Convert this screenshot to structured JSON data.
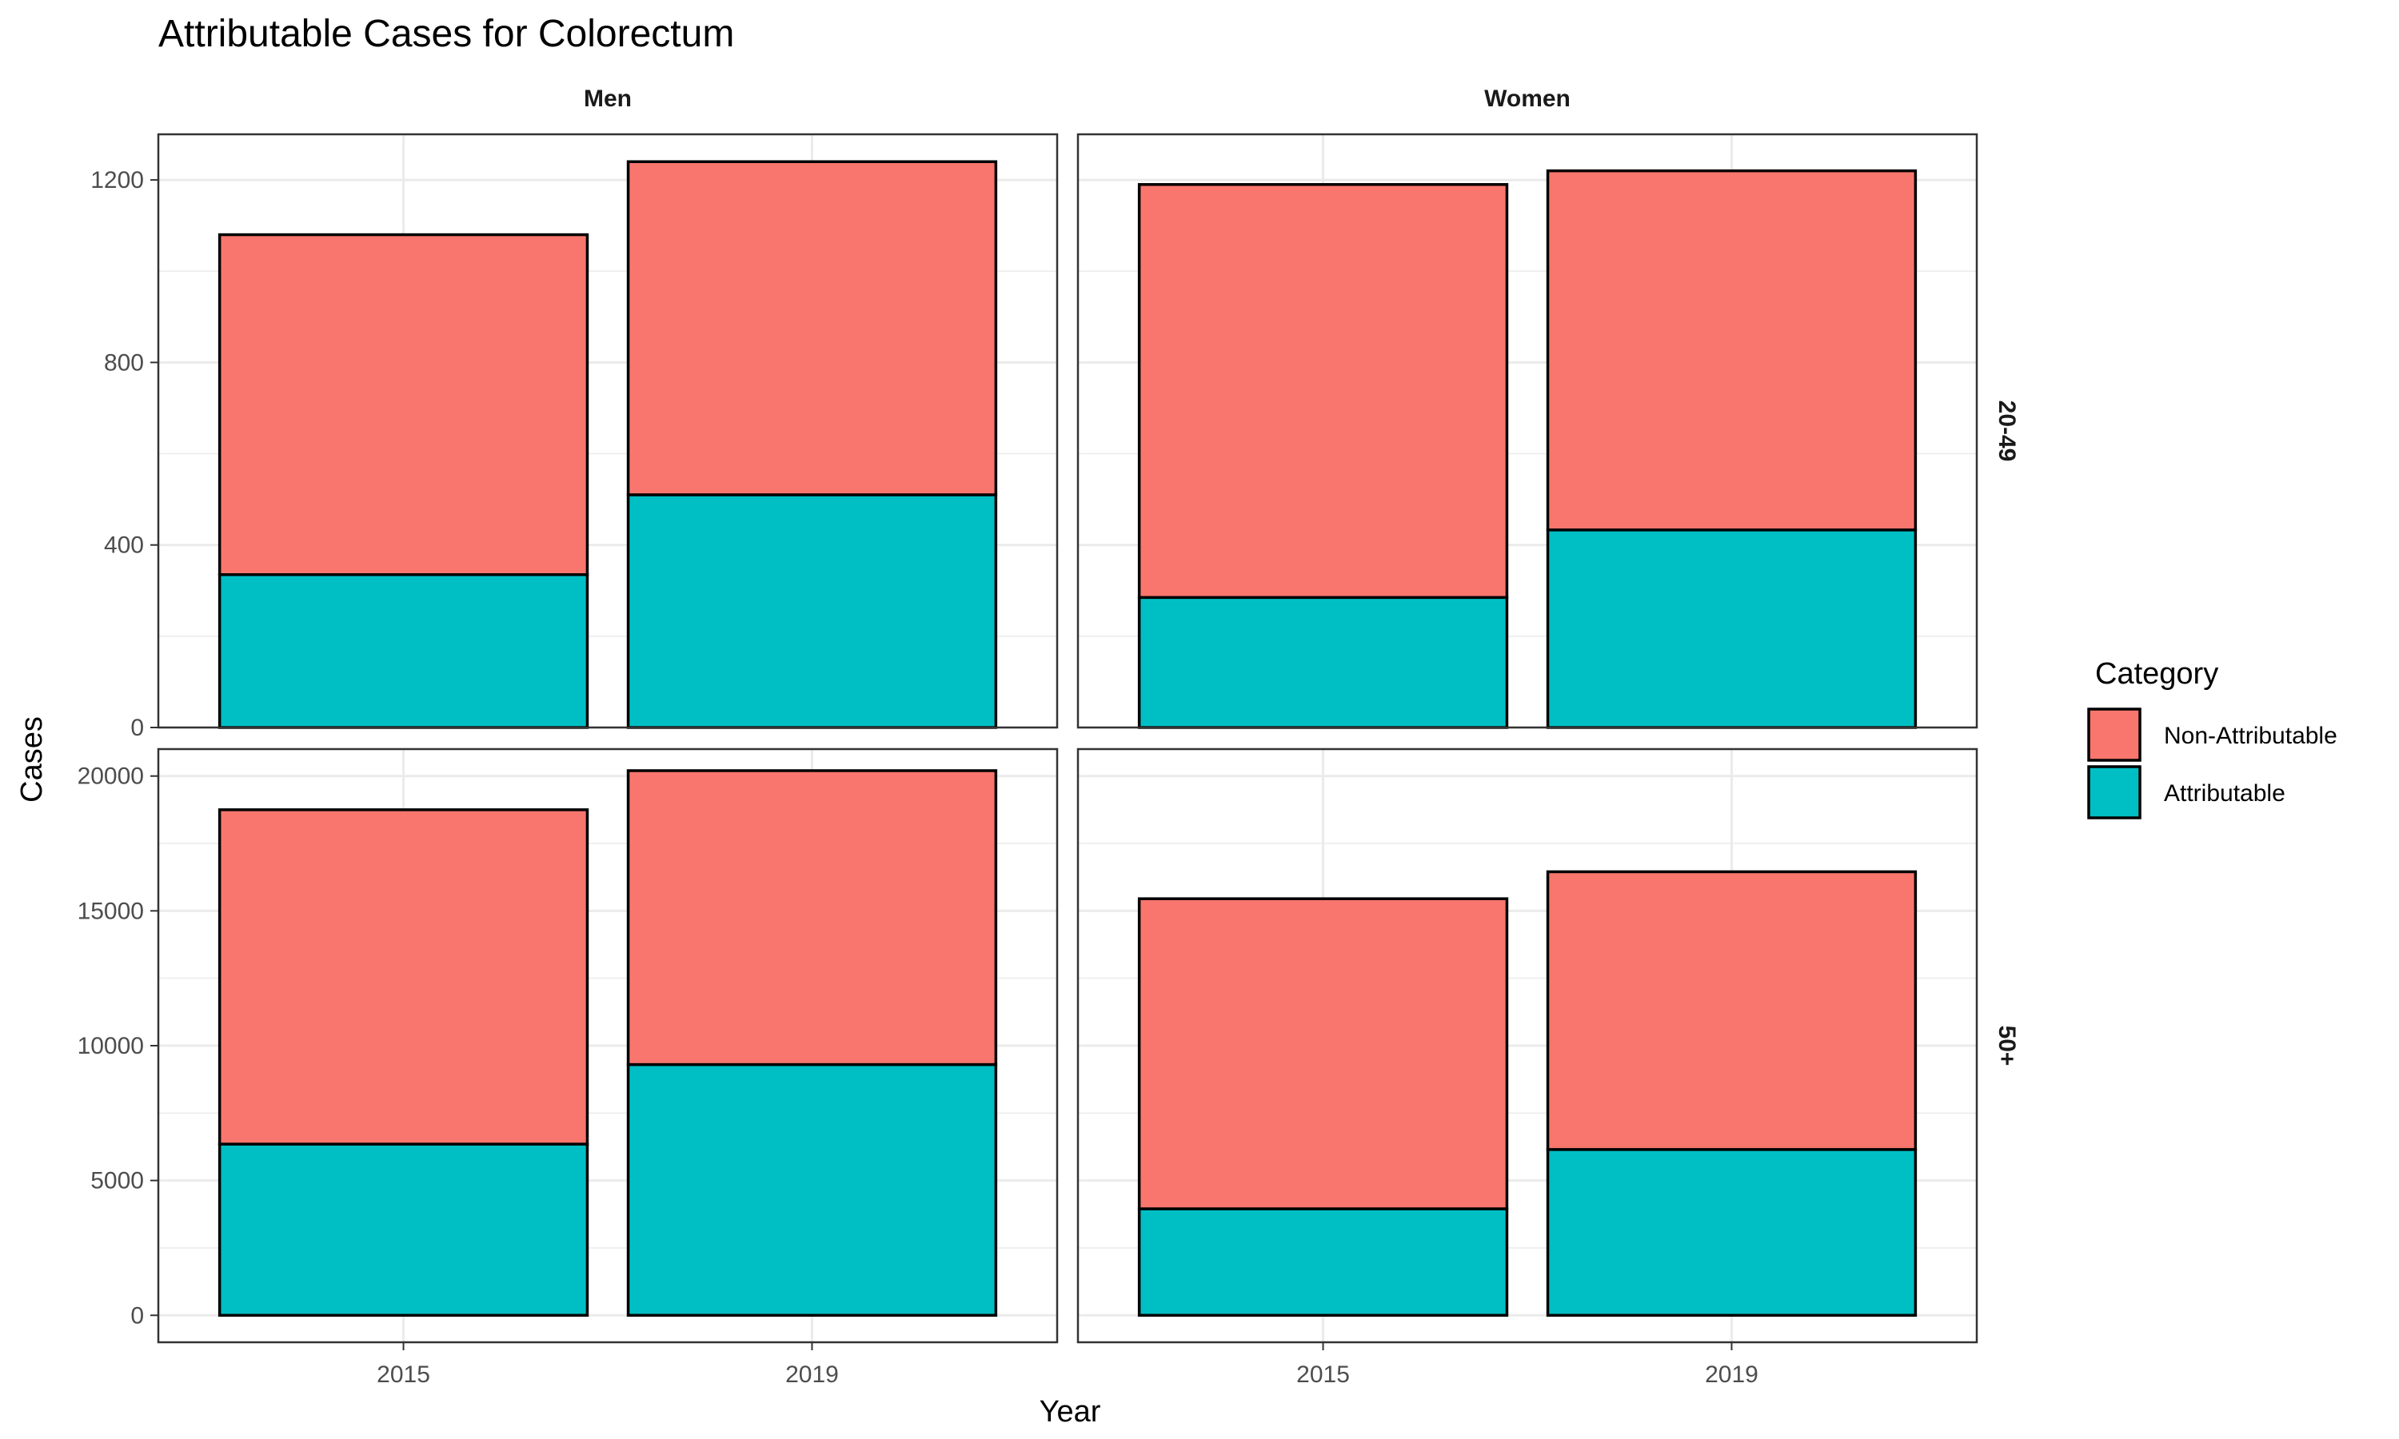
{
  "chart_data": {
    "type": "bar",
    "stacked": true,
    "title": "Attributable Cases for Colorectum",
    "xlabel": "Year",
    "ylabel": "Cases",
    "categories": [
      "2015",
      "2019"
    ],
    "column_facets": [
      "Men",
      "Women"
    ],
    "row_facets": [
      "20-49",
      "50+"
    ],
    "legend": {
      "title": "Category",
      "position": "right",
      "items": [
        {
          "label": "Non-Attributable",
          "color": "#F8766D"
        },
        {
          "label": "Attributable",
          "color": "#00BFC4"
        }
      ]
    },
    "grid": true,
    "scales": "free_y",
    "rows": [
      {
        "facet": "20-49",
        "ylim": [
          0,
          1300
        ],
        "yticks": [
          0,
          400,
          800,
          1200
        ],
        "panels": [
          {
            "facet": "Men",
            "series": [
              {
                "name": "Attributable",
                "values": [
                  335,
                  510
                ]
              },
              {
                "name": "Non-Attributable",
                "values": [
                  745,
                  730
                ]
              }
            ]
          },
          {
            "facet": "Women",
            "series": [
              {
                "name": "Attributable",
                "values": [
                  285,
                  433
                ]
              },
              {
                "name": "Non-Attributable",
                "values": [
                  905,
                  787
                ]
              }
            ]
          }
        ]
      },
      {
        "facet": "50+",
        "ylim": [
          -1000,
          21000
        ],
        "yticks": [
          0,
          5000,
          10000,
          15000,
          20000
        ],
        "panels": [
          {
            "facet": "Men",
            "series": [
              {
                "name": "Attributable",
                "values": [
                  6350,
                  9300
                ]
              },
              {
                "name": "Non-Attributable",
                "values": [
                  12400,
                  10900
                ]
              }
            ]
          },
          {
            "facet": "Women",
            "series": [
              {
                "name": "Attributable",
                "values": [
                  3950,
                  6150
                ]
              },
              {
                "name": "Non-Attributable",
                "values": [
                  11500,
                  10300
                ]
              }
            ]
          }
        ]
      }
    ]
  }
}
